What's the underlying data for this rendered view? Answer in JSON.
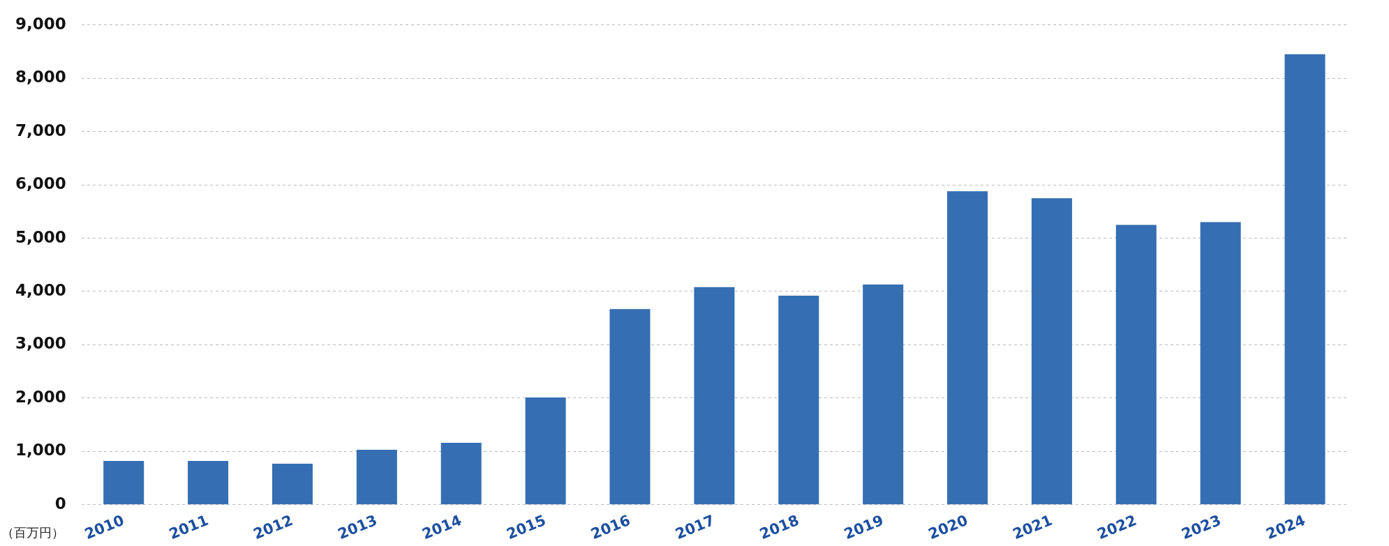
{
  "chart_data": {
    "type": "bar",
    "ylabel": "（百万円）",
    "categories": [
      "2010",
      "2011",
      "2012",
      "2013",
      "2014",
      "2015",
      "2016",
      "2017",
      "2018",
      "2019",
      "2020",
      "2021",
      "2022",
      "2023",
      "2024"
    ],
    "values": [
      820,
      820,
      770,
      1030,
      1160,
      2010,
      3670,
      4080,
      3920,
      4130,
      5880,
      5750,
      5250,
      5300,
      8450
    ],
    "color": "#356eb2",
    "ylim": [
      0,
      9000
    ],
    "yticks": [
      {
        "value": 0,
        "label": "0"
      },
      {
        "value": 1000,
        "label": "1,000"
      },
      {
        "value": 2000,
        "label": "2,000"
      },
      {
        "value": 3000,
        "label": "3,000"
      },
      {
        "value": 4000,
        "label": "4,000"
      },
      {
        "value": 5000,
        "label": "5,000"
      },
      {
        "value": 6000,
        "label": "6,000"
      },
      {
        "value": 7000,
        "label": "7,000"
      },
      {
        "value": 8000,
        "label": "8,000"
      },
      {
        "value": 9000,
        "label": "9,000"
      }
    ],
    "grid": "y",
    "legend": false
  }
}
